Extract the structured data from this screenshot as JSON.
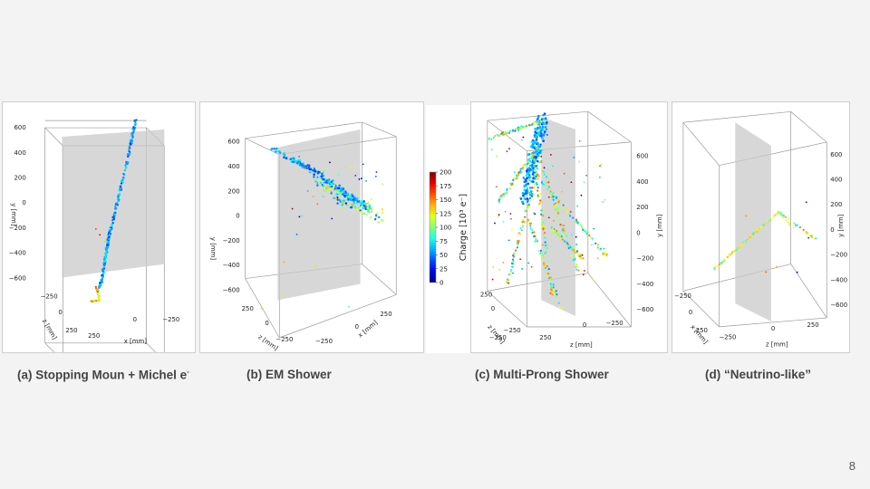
{
  "panels": [
    {
      "caption": "(a) Stopping Moun + Michel e",
      "caption_sup": "-",
      "y_ticks": [
        "600",
        "400",
        "200",
        "0",
        "−200",
        "−400",
        "−600"
      ],
      "y_label": "y [mm]",
      "z_ticks": [
        "−250",
        "0",
        "250"
      ],
      "z_label": "z [mm]",
      "x_ticks": [
        "250",
        "0",
        "−250"
      ],
      "x_label": "x [mm]"
    },
    {
      "caption": "(b) EM Shower",
      "y_ticks": [
        "600",
        "400",
        "200",
        "0",
        "−200",
        "−400",
        "−600"
      ],
      "y_label": "y [mm]",
      "z_ticks": [
        "250",
        "0",
        "−250"
      ],
      "z_label": "z [mm]",
      "x_ticks": [
        "−250",
        "0",
        "250"
      ],
      "x_label": "x [mm]"
    },
    {
      "caption": "(c) Multi-Prong Shower",
      "y_ticks": [
        "600",
        "400",
        "200",
        "0",
        "−200",
        "−400",
        "−600"
      ],
      "y_label": "y [mm]",
      "z_ticks": [
        "250",
        "0",
        "−250"
      ],
      "z_label": "z [mm]",
      "x_ticks": [
        "−250",
        "250",
        "0",
        "−250"
      ],
      "x_label": "z [mm]"
    },
    {
      "caption": "(d) “Neutrino-like”",
      "y_ticks": [
        "600",
        "400",
        "200",
        "0",
        "−200",
        "−400",
        "−600"
      ],
      "y_label": "y [mm]",
      "z_ticks": [
        "−250",
        "0",
        "250"
      ],
      "z_label": "x [mm]",
      "x_ticks": [
        "−250",
        "0",
        "250"
      ],
      "x_label": "z [mm]"
    }
  ],
  "colorbar": {
    "label": "Charge [10³ e⁻]",
    "ticks": [
      "200",
      "175",
      "150",
      "125",
      "100",
      "75",
      "50",
      "25",
      "0"
    ]
  },
  "slide_number": "8"
}
